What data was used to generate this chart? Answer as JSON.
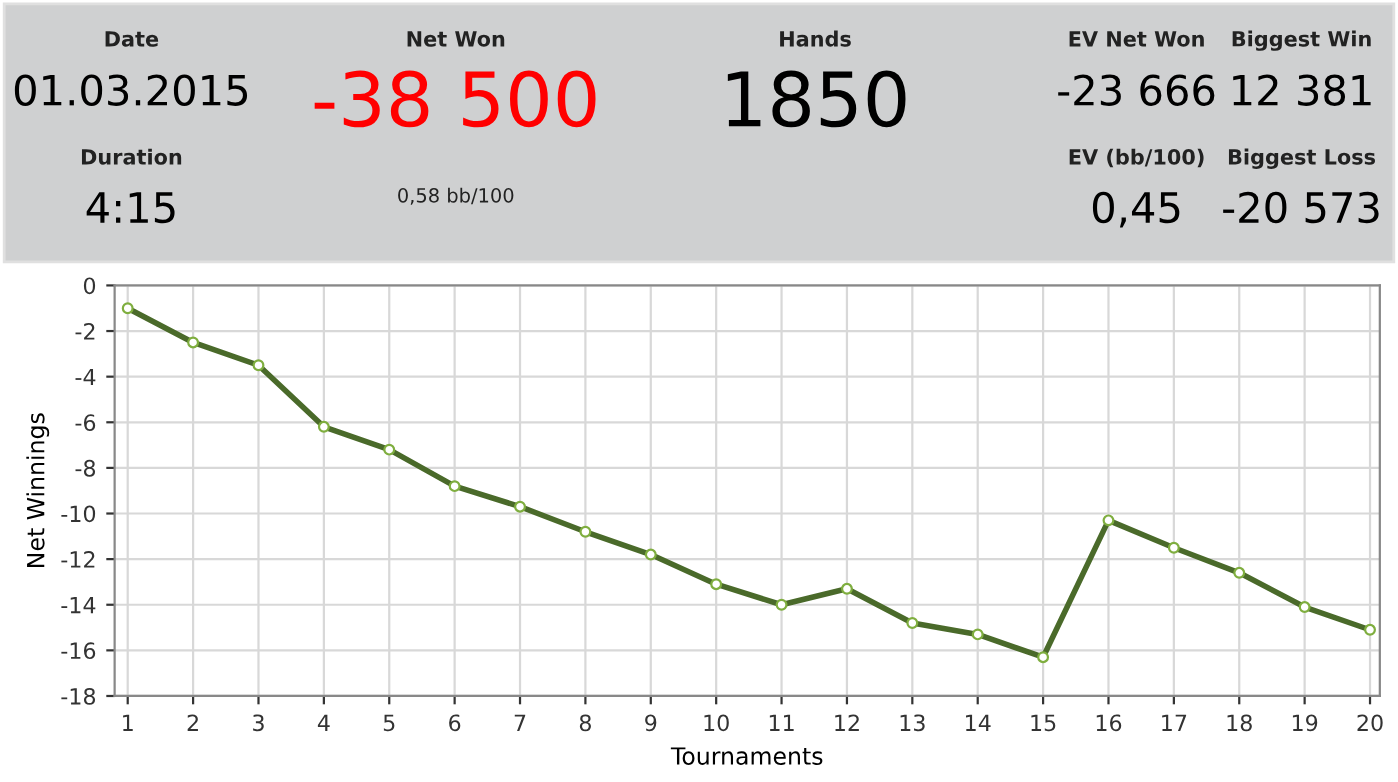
{
  "chart_data": [
    {
      "type": "other",
      "annotations": [
        "Date",
        "01.03.2015",
        "Duration",
        "4:15",
        "Net Won",
        "-38 500",
        "0,58 bb/100",
        "Hands",
        "1850",
        "EV Net Won",
        "-23 666",
        "EV (bb/100)",
        "0,45",
        "Biggest Win",
        "12 381",
        "Biggest Loss",
        "-20 573"
      ],
      "colors": [
        "#222222",
        "#000000",
        "#222222",
        "#000000",
        "#222222",
        "#ff0000",
        "#222222",
        "#222222",
        "#000000",
        "#222222",
        "#000000",
        "#222222",
        "#000000",
        "#222222",
        "#000000",
        "#222222",
        "#000000"
      ]
    },
    {
      "type": "line",
      "xlabel": "Tournaments",
      "ylabel": "Net Winnings",
      "x": [
        1,
        2,
        3,
        4,
        5,
        6,
        7,
        8,
        9,
        10,
        11,
        12,
        13,
        14,
        15,
        16,
        17,
        18,
        19,
        20
      ],
      "series": [
        {
          "color": "#4a6a2a",
          "values": [
            -1.0,
            -2.5,
            -3.5,
            -6.2,
            -7.2,
            -8.8,
            -9.7,
            -10.8,
            -11.8,
            -13.1,
            -14.0,
            -13.3,
            -14.8,
            -15.3,
            -16.3,
            -10.3,
            -11.5,
            -12.6,
            -14.1,
            -15.1
          ]
        }
      ],
      "xlim": [
        0.8,
        20.15
      ],
      "xticks": [
        1,
        2,
        3,
        4,
        5,
        6,
        7,
        8,
        9,
        10,
        11,
        12,
        13,
        14,
        15,
        16,
        17,
        18,
        19,
        20
      ],
      "ylim": [
        -18,
        0
      ],
      "yticks": [
        -18,
        -16,
        -14,
        -12,
        -10,
        -8,
        -6,
        -4,
        -2,
        0
      ],
      "grid": true,
      "marker": "circle",
      "line_style": "solid"
    }
  ]
}
